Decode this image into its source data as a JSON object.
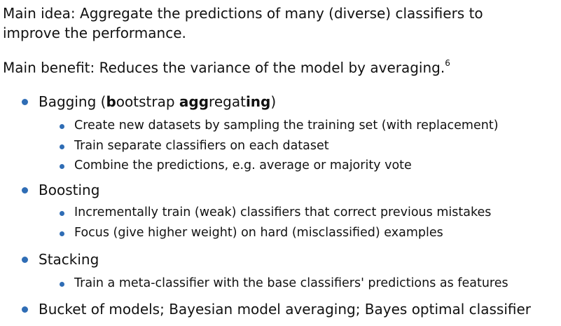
{
  "main_idea": {
    "lines": [
      "Main idea: Aggregate the predictions of many (diverse) classifiers to",
      "improve the performance."
    ]
  },
  "main_benefit": {
    "text": "Main benefit: Reduces the variance of the model by averaging.",
    "footnote": "6"
  },
  "items": [
    {
      "label_parts": [
        {
          "text": "Bagging (",
          "bold": false
        },
        {
          "text": "b",
          "bold": true
        },
        {
          "text": "ootstrap ",
          "bold": false
        },
        {
          "text": "agg",
          "bold": true
        },
        {
          "text": "regat",
          "bold": false
        },
        {
          "text": "ing",
          "bold": true
        },
        {
          "text": ")",
          "bold": false
        }
      ],
      "subitems": [
        "Create new datasets by sampling the training set (with replacement)",
        "Train separate classifiers on each dataset",
        "Combine the predictions, e.g. average or majority vote"
      ]
    },
    {
      "label": "Boosting",
      "subitems": [
        "Incrementally train (weak) classifiers that correct previous mistakes",
        "Focus (give higher weight) on hard (misclassified) examples"
      ]
    },
    {
      "label": "Stacking",
      "subitems": [
        "Train a meta-classifier with the base classifiers' predictions as features"
      ]
    },
    {
      "label": "Bucket of models; Bayesian model averaging; Bayes optimal classifier"
    }
  ]
}
